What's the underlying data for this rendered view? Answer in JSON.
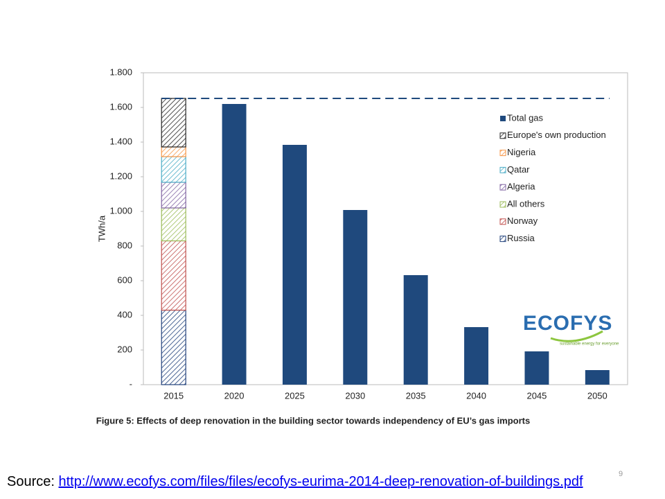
{
  "chart_data": {
    "type": "bar",
    "stacked": true,
    "y_label": "TWh/a",
    "caption": "Figure 5: Effects of deep renovation in the building sector towards independency of EU’s gas imports",
    "categories": [
      "2015",
      "2020",
      "2025",
      "2030",
      "2035",
      "2040",
      "2045",
      "2050"
    ],
    "series": [
      {
        "name": "Russia",
        "color": "#1f3f7a",
        "hatch": true,
        "values": [
          430,
          null,
          null,
          null,
          null,
          null,
          null,
          null
        ]
      },
      {
        "name": "Norway",
        "color": "#c0504d",
        "hatch": true,
        "values": [
          400,
          null,
          null,
          null,
          null,
          null,
          null,
          null
        ]
      },
      {
        "name": "All others",
        "color": "#9bbb59",
        "hatch": true,
        "values": [
          190,
          null,
          null,
          null,
          null,
          null,
          null,
          null
        ]
      },
      {
        "name": "Algeria",
        "color": "#8064a2",
        "hatch": true,
        "values": [
          148,
          null,
          null,
          null,
          null,
          null,
          null,
          null
        ]
      },
      {
        "name": "Qatar",
        "color": "#4bacc6",
        "hatch": true,
        "values": [
          148,
          null,
          null,
          null,
          null,
          null,
          null,
          null
        ]
      },
      {
        "name": "Nigeria",
        "color": "#f79646",
        "hatch": true,
        "values": [
          56,
          null,
          null,
          null,
          null,
          null,
          null,
          null
        ]
      },
      {
        "name": "Europe's own production",
        "color": "#222222",
        "hatch": true,
        "values": [
          280,
          null,
          null,
          null,
          null,
          null,
          null,
          null
        ]
      },
      {
        "name": "Total gas",
        "color": "#1f497d",
        "hatch": false,
        "values": [
          null,
          1620,
          1384,
          1008,
          632,
          332,
          192,
          84
        ]
      }
    ],
    "reference_line": 1652,
    "ylim": [
      0,
      1800
    ],
    "yticks": [
      {
        "value": 0,
        "label": "-"
      },
      200,
      400,
      600,
      800,
      {
        "value": 1000,
        "label": "1.000"
      },
      {
        "value": 1200,
        "label": "1.200"
      },
      {
        "value": 1400,
        "label": "1.400"
      },
      {
        "value": 1600,
        "label": "1.600"
      },
      {
        "value": 1800,
        "label": "1.800"
      }
    ],
    "grid": false
  },
  "logo": {
    "name": "ECOFYS",
    "tagline": "sustainable energy for everyone"
  },
  "footer": {
    "source_label": "Source:",
    "source_url": "http://www.ecofys.com/files/files/ecofys-eurima-2014-deep-renovation-of-buildings.pdf",
    "page_number": "9"
  }
}
